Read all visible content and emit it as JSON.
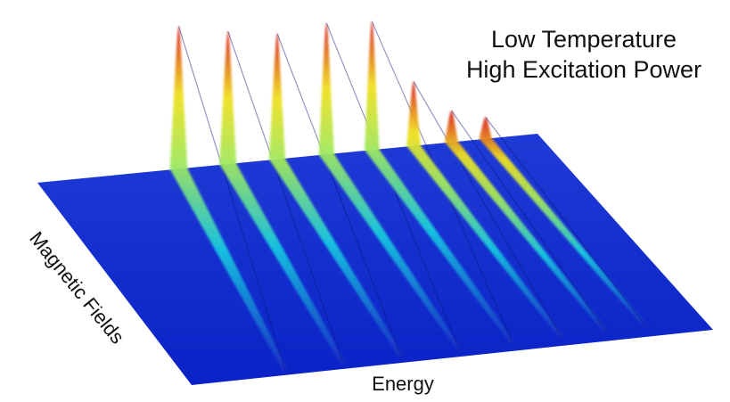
{
  "chart_data": {
    "type": "surface",
    "title_lines": [
      "Low Temperature",
      "High Excitation Power"
    ],
    "xlabel": "Energy",
    "ylabel": "Magnetic Fields",
    "zlabel": "",
    "grid": false,
    "colormap": "jet",
    "colors": {
      "low": "#1a2fc8",
      "mid": "#18c8e0",
      "high": "#f0e020",
      "peak": "#d81e1e"
    },
    "ridges": [
      {
        "energy_position": 0.06,
        "max_height": 1.0
      },
      {
        "energy_position": 0.19,
        "max_height": 0.93
      },
      {
        "energy_position": 0.32,
        "max_height": 0.88
      },
      {
        "energy_position": 0.45,
        "max_height": 0.92
      },
      {
        "energy_position": 0.57,
        "max_height": 0.9
      },
      {
        "energy_position": 0.68,
        "max_height": 0.45
      },
      {
        "energy_position": 0.78,
        "max_height": 0.22
      },
      {
        "energy_position": 0.87,
        "max_height": 0.15
      }
    ]
  }
}
